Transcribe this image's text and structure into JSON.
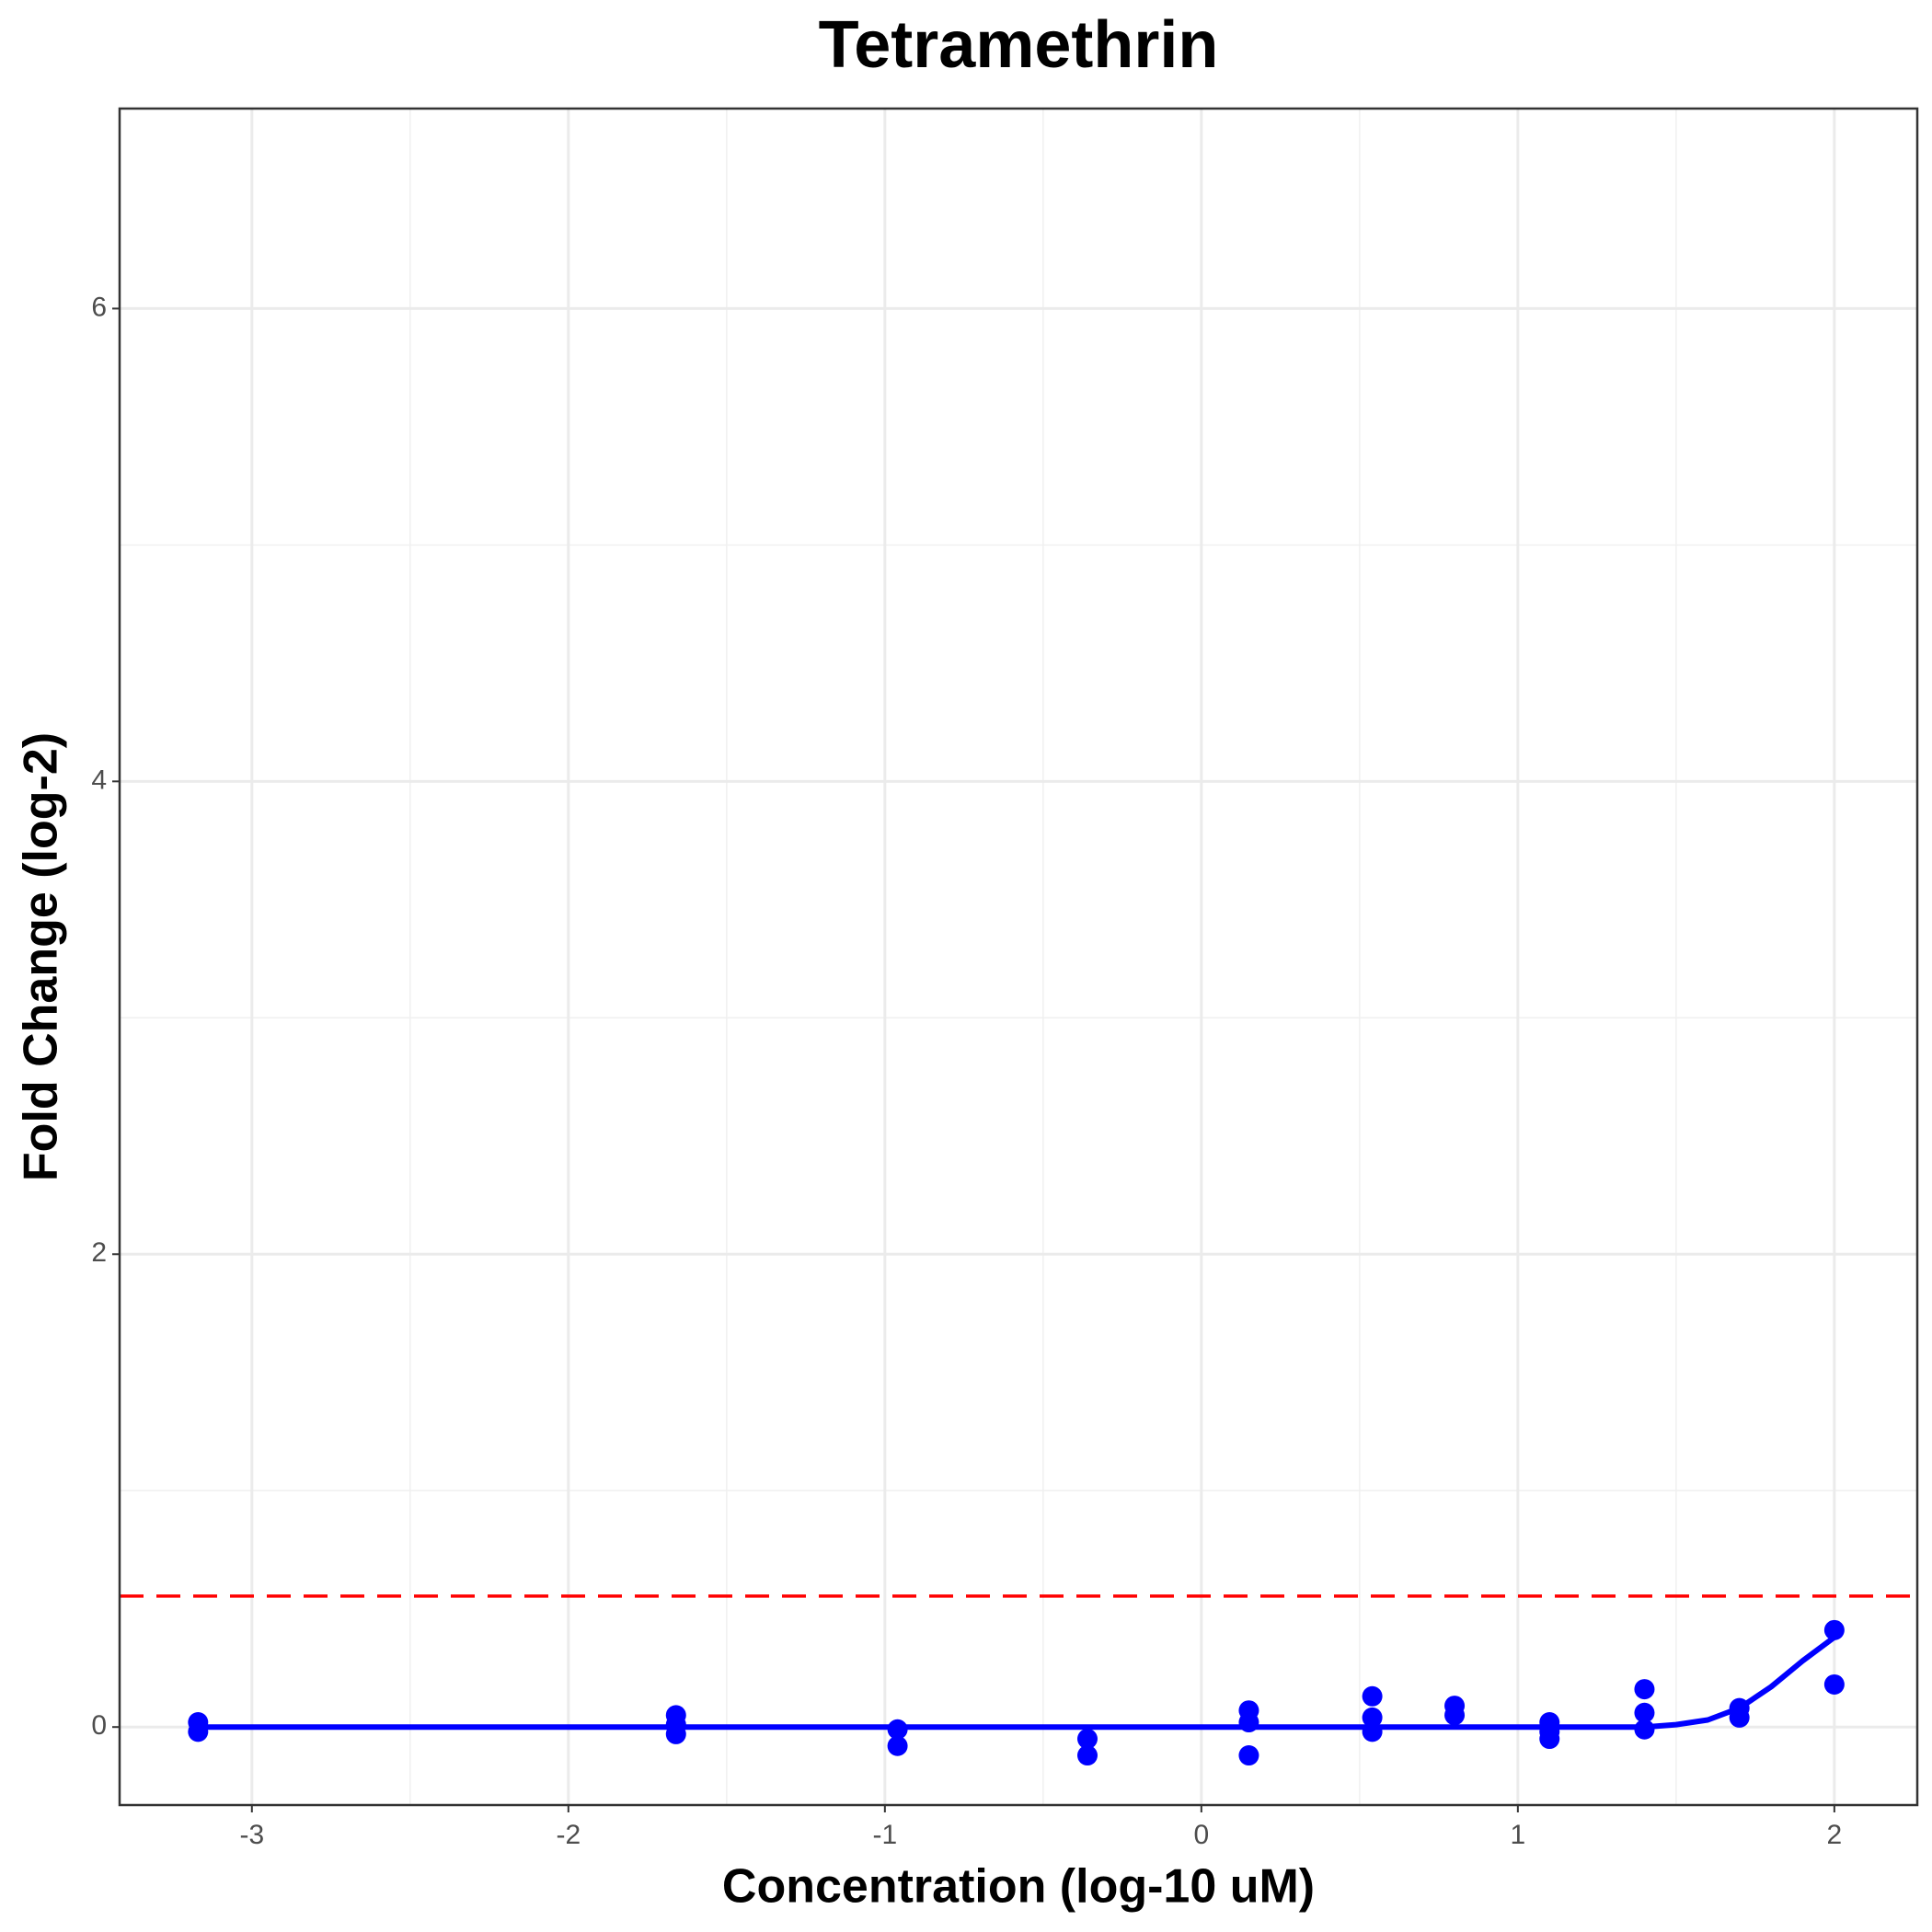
{
  "chart_data": {
    "type": "scatter",
    "title": "Tetramethrin",
    "xlabel": "Concentration (log-10 uM)",
    "ylabel": "Fold Change (log-2)",
    "xlim": [
      -3.418,
      2.262
    ],
    "ylim": [
      -0.33,
      6.846
    ],
    "xticks": [
      -3,
      -2,
      -1,
      0,
      1,
      2
    ],
    "yticks": [
      0,
      2,
      4,
      6
    ],
    "xminor": [
      -2.5,
      -1.5,
      -0.5,
      0.5,
      1.5
    ],
    "yminor": [
      1,
      3,
      5
    ],
    "grid": true,
    "points": {
      "color": "#0000ff",
      "x": [
        -3.17,
        -3.17,
        -1.66,
        -1.66,
        -1.66,
        -0.96,
        -0.96,
        -0.36,
        -0.36,
        0.15,
        0.15,
        0.15,
        0.54,
        0.54,
        0.54,
        0.8,
        0.8,
        1.1,
        1.1,
        1.1,
        1.4,
        1.4,
        1.4,
        1.7,
        1.7,
        2.0,
        2.0
      ],
      "values": [
        0.02,
        -0.02,
        0.05,
        0.01,
        -0.03,
        -0.01,
        -0.08,
        -0.05,
        -0.12,
        0.07,
        0.02,
        -0.12,
        0.13,
        0.04,
        -0.02,
        0.09,
        0.05,
        0.02,
        -0.02,
        -0.05,
        0.16,
        0.06,
        -0.01,
        0.08,
        0.04,
        0.41,
        0.18
      ]
    },
    "curve": {
      "color": "#0000ff",
      "x": [
        -3.17,
        1.4,
        1.5,
        1.6,
        1.7,
        1.8,
        1.9,
        2.0
      ],
      "values": [
        0,
        0,
        0.01,
        0.03,
        0.08,
        0.17,
        0.28,
        0.38
      ]
    },
    "threshold": {
      "value": 0.554,
      "color": "#ff0000"
    }
  }
}
